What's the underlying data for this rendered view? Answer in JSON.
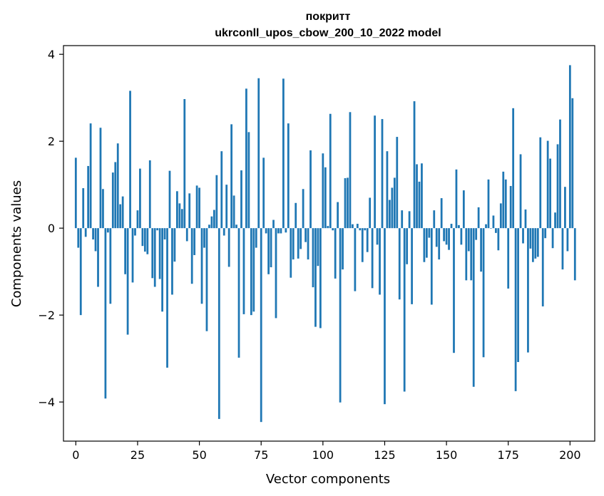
{
  "chart_data": {
    "type": "bar",
    "title": "покритт",
    "subtitle": "ukrconll_upos_cbow_200_10_2022 model",
    "xlabel": "Vector components",
    "ylabel": "Components values",
    "xlim": [
      -5,
      210
    ],
    "ylim": [
      -4.9,
      4.2
    ],
    "xticks": [
      0,
      25,
      50,
      75,
      100,
      125,
      150,
      175,
      200
    ],
    "yticks": [
      -4,
      -2,
      0,
      2,
      4
    ],
    "ytick_labels": [
      "−4",
      "−2",
      "0",
      "2",
      "4"
    ],
    "grid": false,
    "color": "#1f77b4",
    "values": [
      1.62,
      -0.45,
      -2.0,
      0.92,
      -0.2,
      1.43,
      2.41,
      -0.26,
      -0.53,
      -1.35,
      2.31,
      0.9,
      -3.92,
      -0.1,
      -1.74,
      1.28,
      1.52,
      1.95,
      0.55,
      0.73,
      -1.06,
      -2.45,
      3.16,
      -1.25,
      -0.17,
      0.41,
      1.37,
      -0.41,
      -0.54,
      -0.6,
      1.56,
      -1.15,
      -1.35,
      -0.05,
      -1.17,
      -1.92,
      -0.26,
      -3.21,
      1.32,
      -1.53,
      -0.77,
      0.85,
      0.57,
      0.44,
      2.97,
      -0.3,
      0.8,
      -1.28,
      -0.62,
      0.98,
      0.93,
      -1.74,
      -0.45,
      -2.37,
      0.08,
      0.27,
      0.42,
      1.22,
      -4.39,
      1.77,
      -0.17,
      1.0,
      -0.89,
      2.39,
      0.75,
      0.08,
      -2.98,
      1.33,
      -1.98,
      3.21,
      2.21,
      -2.0,
      -1.92,
      -0.45,
      3.45,
      -4.46,
      1.62,
      -0.12,
      -1.06,
      -0.9,
      0.19,
      -2.07,
      -0.12,
      -0.12,
      3.44,
      -0.1,
      2.41,
      -1.14,
      -0.72,
      0.58,
      -0.7,
      -0.48,
      0.9,
      -0.32,
      -0.72,
      1.79,
      -1.36,
      -2.27,
      -0.87,
      -2.3,
      1.72,
      1.4,
      0.05,
      2.63,
      -0.05,
      -1.16,
      0.6,
      -4.01,
      -0.95,
      1.15,
      1.16,
      2.67,
      0.09,
      -1.45,
      0.1,
      -0.05,
      -0.78,
      -0.05,
      -0.55,
      0.7,
      -1.38,
      2.59,
      -0.38,
      -1.53,
      2.51,
      -4.05,
      1.77,
      0.65,
      0.93,
      1.16,
      2.1,
      -1.64,
      0.41,
      -3.76,
      -0.83,
      0.39,
      -1.75,
      2.92,
      1.47,
      1.07,
      1.49,
      -0.78,
      -0.68,
      -0.22,
      -1.76,
      0.41,
      -0.43,
      -0.72,
      0.69,
      -0.3,
      -0.38,
      -0.5,
      0.1,
      -2.87,
      1.35,
      0.07,
      -0.38,
      0.87,
      -1.2,
      -0.53,
      -1.2,
      -3.65,
      -0.27,
      0.48,
      -1.0,
      -2.97,
      0.09,
      1.12,
      0.0,
      0.29,
      -0.11,
      -0.51,
      0.57,
      1.3,
      1.12,
      -1.39,
      0.97,
      2.76,
      -3.75,
      -3.08,
      1.7,
      -0.35,
      0.43,
      -2.86,
      -0.47,
      -0.78,
      -0.7,
      -0.66,
      2.09,
      -1.8,
      -0.23,
      2.01,
      1.6,
      -0.46,
      0.36,
      1.93,
      2.5,
      -0.95,
      0.95,
      -0.53,
      3.75,
      2.99,
      -1.2
    ]
  }
}
